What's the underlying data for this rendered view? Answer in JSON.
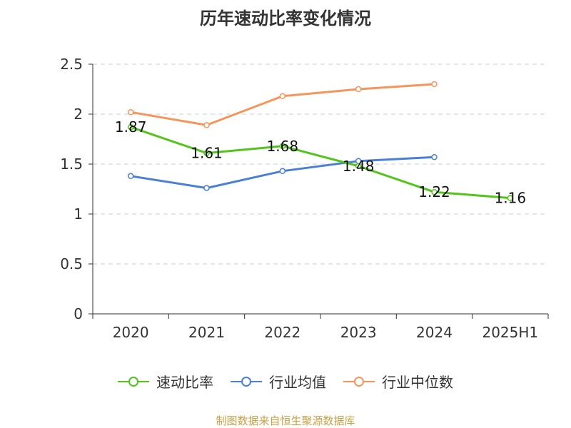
{
  "chart_data": {
    "type": "line",
    "title": "历年速动比率变化情况",
    "categories": [
      "2020",
      "2021",
      "2022",
      "2023",
      "2024",
      "2025H1"
    ],
    "ylim": [
      0,
      2.5
    ],
    "yticks": [
      "0",
      "0.5",
      "1",
      "1.5",
      "2",
      "2.5"
    ],
    "grid": "horizontal dashed",
    "legend_position": "bottom",
    "series": [
      {
        "name": "速动比率",
        "color": "#52c41a",
        "values": [
          1.87,
          1.61,
          1.68,
          1.48,
          1.22,
          1.16
        ],
        "labels": [
          "1.87",
          "1.61",
          "1.68",
          "1.48",
          "1.22",
          "1.16"
        ]
      },
      {
        "name": "行业均值",
        "color": "#4a7fd6",
        "values": [
          1.38,
          1.26,
          1.43,
          1.53,
          1.57,
          null
        ]
      },
      {
        "name": "行业中位数",
        "color": "#f5955b",
        "values": [
          2.02,
          1.89,
          2.18,
          2.25,
          2.3,
          null
        ]
      }
    ]
  },
  "footer": {
    "source": "制图数据来自恒生聚源数据库",
    "source_color": "#c8a046"
  }
}
